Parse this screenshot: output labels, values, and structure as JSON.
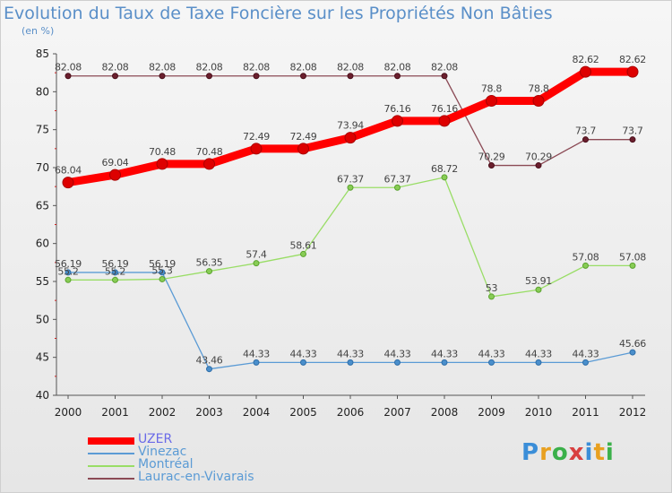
{
  "header": {
    "title": "Evolution du Taux de Taxe Foncière sur les Propriétés Non Bâties",
    "unit": "(en %)"
  },
  "logo": {
    "letters": [
      "P",
      "r",
      "o",
      "x",
      "i",
      "t",
      "i"
    ],
    "colors": [
      "#3b8ed8",
      "#e8a020",
      "#3bb04a",
      "#d84040",
      "#3b8ed8",
      "#e8a020",
      "#3bb04a"
    ]
  },
  "chart_data": {
    "type": "line",
    "title": "Evolution du Taux de Taxe Foncière sur les Propriétés Non Bâties",
    "ylabel": "(en %)",
    "xlabel": "",
    "ylim": [
      40,
      85
    ],
    "yticks": [
      40,
      45,
      50,
      55,
      60,
      65,
      70,
      75,
      80,
      85
    ],
    "grid": false,
    "legend_position": "bottom-left",
    "categories": [
      "2000",
      "2001",
      "2002",
      "2003",
      "2004",
      "2005",
      "2006",
      "2007",
      "2008",
      "2009",
      "2010",
      "2011",
      "2012"
    ],
    "series": [
      {
        "name": "UZER",
        "color": "#ff0000",
        "values": [
          68.04,
          69.04,
          70.48,
          70.48,
          72.49,
          72.49,
          73.94,
          76.16,
          76.16,
          78.8,
          78.8,
          82.62,
          82.62
        ],
        "labels": [
          "68.04",
          "69.04",
          "70.48",
          "70.48",
          "72.49",
          "72.49",
          "73.94",
          "76.16",
          "76.16",
          "78.8",
          "78.8",
          "82.62",
          "82.62"
        ]
      },
      {
        "name": "Vinezac",
        "color": "#5b9bd5",
        "values": [
          56.19,
          56.19,
          56.19,
          43.46,
          44.33,
          44.33,
          44.33,
          44.33,
          44.33,
          44.33,
          44.33,
          44.33,
          45.66
        ],
        "labels": [
          "56.19",
          "56.19",
          "56.19",
          "43.46",
          "44.33",
          "44.33",
          "44.33",
          "44.33",
          "44.33",
          "44.33",
          "44.33",
          "44.33",
          "45.66"
        ]
      },
      {
        "name": "Montréal",
        "color": "#99dd66",
        "values": [
          55.2,
          55.2,
          55.3,
          56.35,
          57.4,
          58.61,
          67.37,
          67.37,
          68.72,
          53,
          53.91,
          57.08,
          57.08
        ],
        "labels": [
          "55.2",
          "55.2",
          "55.3",
          "56.35",
          "57.4",
          "58.61",
          "67.37",
          "67.37",
          "68.72",
          "53",
          "53.91",
          "57.08",
          "57.08"
        ]
      },
      {
        "name": "Laurac-en-Vivarais",
        "color": "#8b4a55",
        "values": [
          82.08,
          82.08,
          82.08,
          82.08,
          82.08,
          82.08,
          82.08,
          82.08,
          82.08,
          70.29,
          70.29,
          73.7,
          73.7
        ],
        "labels": [
          "82.08",
          "82.08",
          "82.08",
          "82.08",
          "82.08",
          "82.08",
          "82.08",
          "82.08",
          "82.08",
          "70.29",
          "70.29",
          "73.7",
          "73.7"
        ]
      }
    ]
  }
}
